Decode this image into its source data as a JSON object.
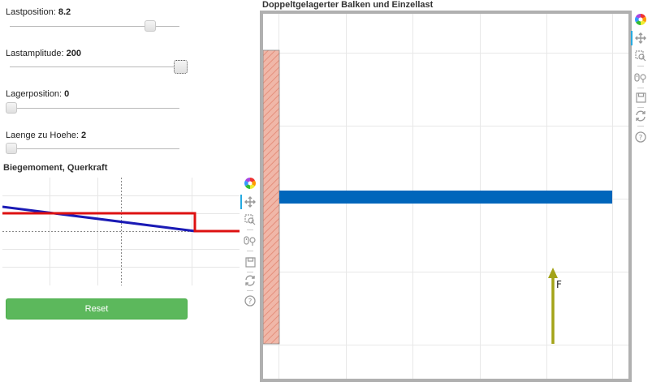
{
  "sliders": [
    {
      "label": "Lastposition: ",
      "value": "8.2",
      "level": 0.82
    },
    {
      "label": "Lastamplitude: ",
      "value": "200",
      "level": 1.0
    },
    {
      "label": "Lagerposition: ",
      "value": "0",
      "level": 0.0
    },
    {
      "label": "Laenge zu Hoehe: ",
      "value": "2",
      "level": 0.0
    }
  ],
  "small_plot": {
    "title": "Biegemoment, Querkraft",
    "toolbar": [
      "color-wheel-icon",
      "pan-icon",
      "box-zoom-icon",
      "wheel-zoom-icon",
      "save-icon",
      "reset-icon",
      "help-icon"
    ]
  },
  "reset_button": {
    "label": "Reset"
  },
  "main_plot": {
    "title": "Doppeltgelagerter Balken und Einzellast",
    "force_label": "F",
    "toolbar": [
      "color-wheel-icon",
      "pan-icon",
      "box-zoom-icon",
      "wheel-zoom-icon",
      "save-icon",
      "reset-icon",
      "help-icon"
    ]
  },
  "colors": {
    "beam": "#0066bb",
    "force": "#a3a318",
    "wall": "#e8a090",
    "moment_line": "#1a1ab5",
    "shear_line": "#dd1111",
    "button": "#5cb85c"
  },
  "chart_data": [
    {
      "type": "line",
      "title": "Biegemoment, Querkraft",
      "series": [
        {
          "values_x": [
            0,
            1,
            2,
            3,
            4,
            5,
            6
          ],
          "values_y": [
            0.55,
            0.42,
            0.29,
            0.16,
            0.03,
            -0.1,
            -0.2
          ]
        },
        {
          "values_x": [
            0,
            4.1,
            4.1,
            5,
            6
          ],
          "values_y": [
            0.45,
            0.45,
            -0.2,
            -0.2,
            -0.2
          ]
        }
      ]
    },
    {
      "type": "scatter",
      "title": "Doppeltgelagerter Balken und Einzellast",
      "beam": {
        "x": [
          0,
          10
        ],
        "y": 0
      },
      "force": {
        "x": 8.2,
        "y_from": -5,
        "y_to": -2,
        "label": "F"
      }
    }
  ]
}
